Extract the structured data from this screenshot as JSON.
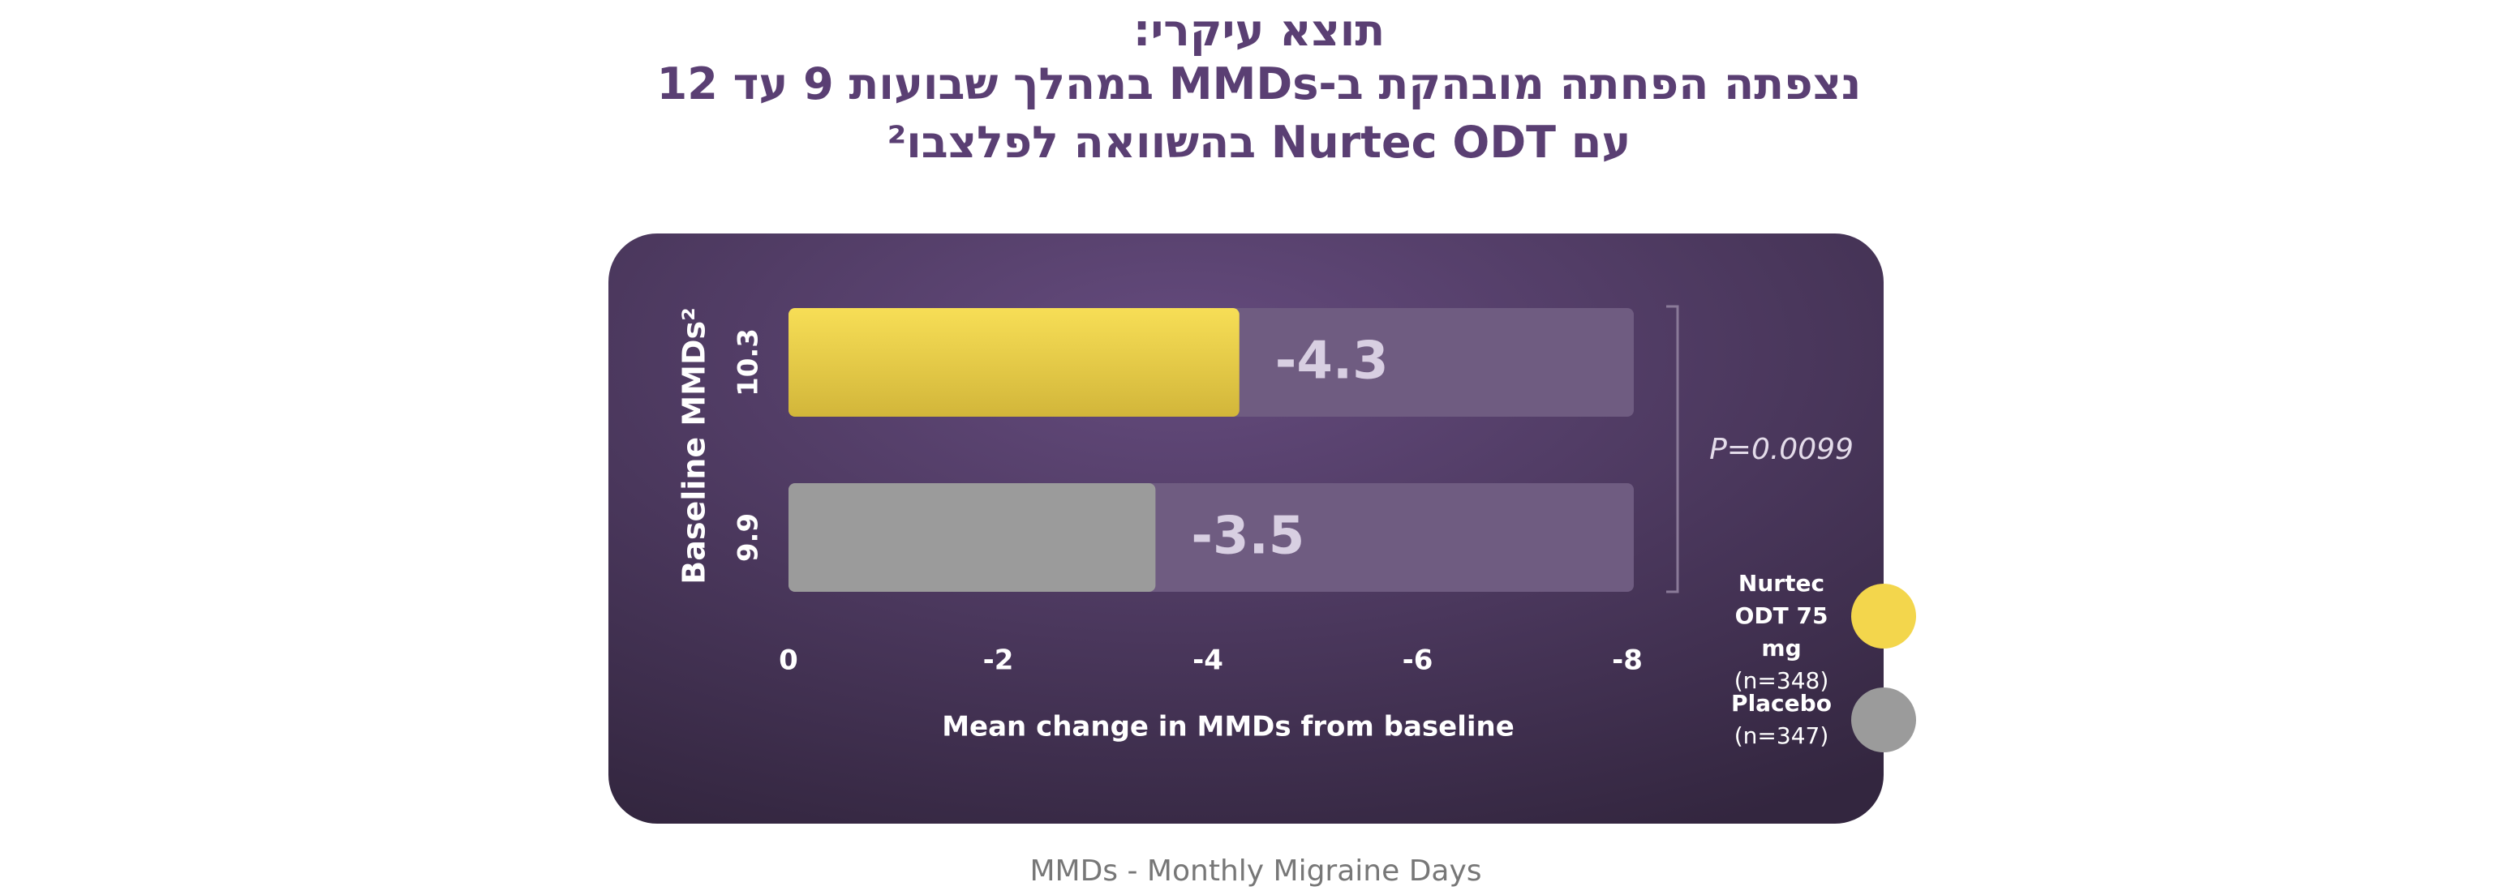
{
  "chart_data": {
    "type": "hbar",
    "title": [
      "תוצא עיקרי:",
      "נצפתה הפחתה מובהקת ב-MMDs במהלך שבועות 9 עד 12",
      "עם Nurtec ODT בהשוואה לפלצבו²"
    ],
    "baseline": [
      10.3,
      9.9
    ],
    "values": [
      -4.3,
      -3.5
    ],
    "colors": [
      "#f3d64c",
      "#9b9b9b"
    ],
    "xlim": [
      0,
      -8
    ],
    "xticks": [
      0,
      -2,
      -4,
      -6,
      -8
    ],
    "xlabel": "Mean change in MMDs from baseline",
    "ylabel": "Baseline MMDs²",
    "annotation": "P=0.0099",
    "legend": [
      {
        "name": "Nurtec ODT 75 mg",
        "note": "(n=348)",
        "color": "#f3d64c"
      },
      {
        "name": "Placebo",
        "note": "(n=347)",
        "color": "#9b9b9b"
      }
    ],
    "footnote": "MMDs - Monthly Migraine Days"
  }
}
